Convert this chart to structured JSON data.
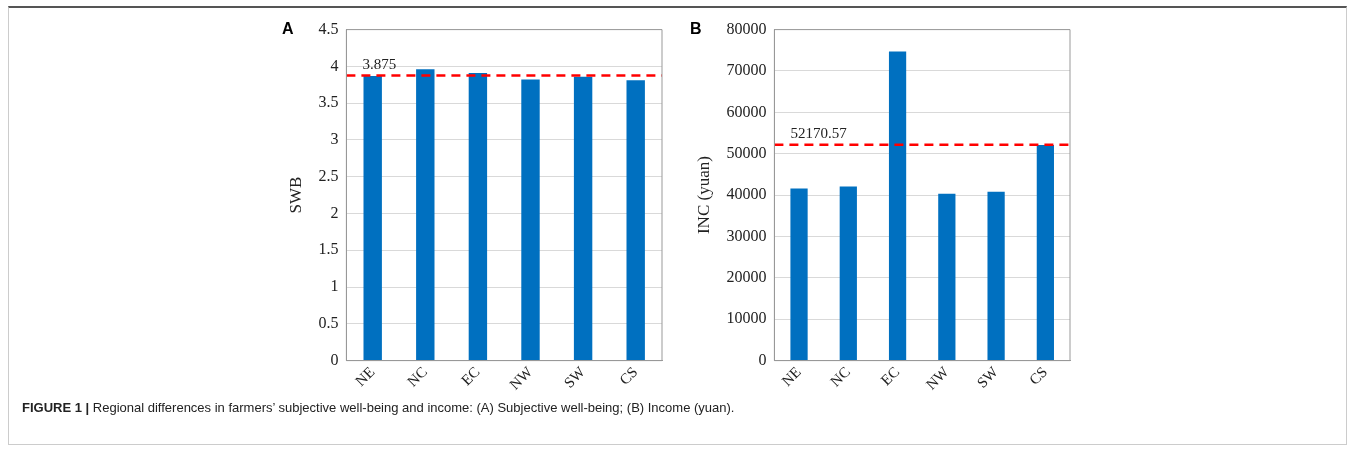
{
  "chart_data": [
    {
      "type": "bar",
      "title": "A",
      "ylabel": "SWB",
      "categories": [
        "NE",
        "NC",
        "EC",
        "NW",
        "SW",
        "CS"
      ],
      "series": [
        {
          "color": "#0070c0",
          "values": [
            3.87,
            3.96,
            3.91,
            3.82,
            3.86,
            3.81
          ]
        }
      ],
      "ylim": [
        0,
        4.5
      ],
      "yticks": [
        0,
        0.5,
        1,
        1.5,
        2,
        2.5,
        3,
        3.5,
        4,
        4.5
      ],
      "grid": "y",
      "legend": false,
      "ref_lines": [
        {
          "axis": "y",
          "value": 3.875,
          "label": "3.875",
          "color": "#ff0000",
          "line_style": "dashed"
        }
      ],
      "annotations": [
        "FIGURE 1 | Regional differences in farmers’ subjective well-being and income: (A) Subjective well-being; (B) Income (yuan)."
      ]
    },
    {
      "type": "bar",
      "title": "B",
      "ylabel": "INC (yuan)",
      "categories": [
        "NE",
        "NC",
        "EC",
        "NW",
        "SW",
        "CS"
      ],
      "series": [
        {
          "color": "#0070c0",
          "values": [
            41600,
            42100,
            74700,
            40300,
            40800,
            52100
          ]
        }
      ],
      "ylim": [
        0,
        80000
      ],
      "yticks": [
        0,
        10000,
        20000,
        30000,
        40000,
        50000,
        60000,
        70000,
        80000
      ],
      "grid": "y",
      "legend": false,
      "ref_lines": [
        {
          "axis": "y",
          "value": 52170.57,
          "label": "52170.57",
          "color": "#ff0000",
          "line_style": "dashed"
        }
      ]
    }
  ]
}
